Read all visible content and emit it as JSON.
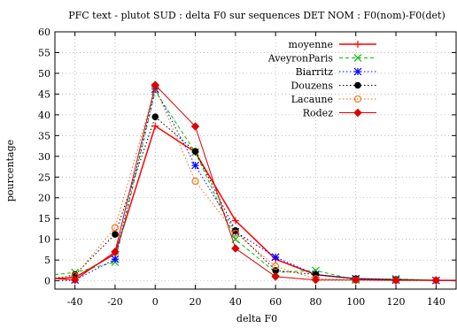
{
  "chart_data": {
    "type": "line",
    "title": "PFC text - plutot SUD : delta F0 sur sequences DET NOM : F0(nom)-F0(det)",
    "xlabel": "delta F0",
    "ylabel": "pourcentage",
    "xlim": [
      -50,
      150
    ],
    "ylim": [
      -2,
      60
    ],
    "xticks": [
      -40,
      -20,
      0,
      20,
      40,
      60,
      80,
      100,
      120,
      140
    ],
    "yticks": [
      0,
      5,
      10,
      15,
      20,
      25,
      30,
      35,
      40,
      45,
      50,
      55,
      60
    ],
    "grid": true,
    "legend_position": "top-right",
    "x": [
      -50,
      -40,
      -20,
      0,
      20,
      40,
      60,
      80,
      100,
      120,
      140,
      150
    ],
    "series": [
      {
        "name": "moyenne",
        "color": "#ff0000",
        "dash": "solid",
        "marker": "plus",
        "values": [
          0.5,
          0.8,
          6.5,
          37.3,
          31.0,
          14.5,
          5.2,
          1.5,
          0.5,
          0.3,
          0.1,
          0.1
        ]
      },
      {
        "name": "AveyronParis",
        "color": "#00c000",
        "dash": "dashed",
        "marker": "cross",
        "values": [
          1.5,
          2.0,
          4.5,
          45.7,
          31.0,
          10.0,
          2.0,
          2.5,
          0.2,
          0.5,
          0.1,
          0.1
        ]
      },
      {
        "name": "Biarritz",
        "color": "#0000ff",
        "dash": "dotted",
        "marker": "star",
        "values": [
          0.0,
          0.2,
          5.2,
          46.2,
          27.8,
          11.8,
          5.7,
          1.5,
          0.5,
          0.2,
          0.1,
          0.1
        ]
      },
      {
        "name": "Douzens",
        "color": "#000000",
        "dash": "dotted",
        "marker": "circle",
        "values": [
          0.5,
          1.5,
          11.2,
          39.5,
          31.2,
          12.1,
          2.5,
          1.5,
          0.5,
          0.3,
          0.1,
          0.1
        ]
      },
      {
        "name": "Lacaune",
        "color": "#ff6600",
        "dash": "dotted",
        "marker": "open-circle",
        "values": [
          0.8,
          1.2,
          12.8,
          46.5,
          24.0,
          11.5,
          3.5,
          0.5,
          0.2,
          0.1,
          0.1,
          0.1
        ]
      },
      {
        "name": "Rodez",
        "color": "#dd0000",
        "dash": "solid",
        "marker": "diamond",
        "values": [
          0.5,
          0.2,
          7.0,
          47.2,
          37.2,
          7.8,
          1.0,
          0.2,
          0.2,
          0.1,
          0.1,
          0.1
        ]
      }
    ]
  }
}
